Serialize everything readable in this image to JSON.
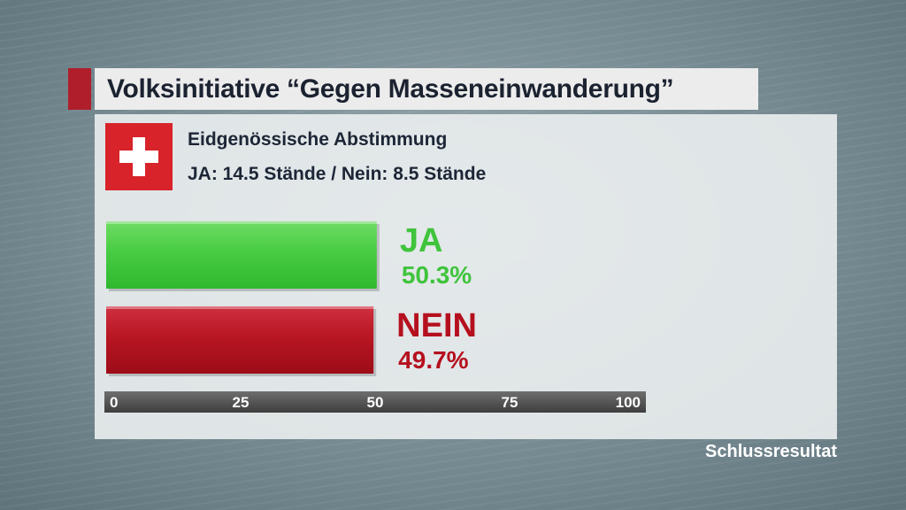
{
  "title": "Volksinitiative “Gegen Masseneinwanderung”",
  "subtitle": "Eidgenössische Abstimmung",
  "standes": "JA: 14.5 Stände / Nein: 8.5 Stände",
  "footer": "Schlussresultat",
  "colors": {
    "ja": "#3fc43c",
    "nein": "#b5101e",
    "accent": "#b01e2b",
    "flag": "#d8232a"
  },
  "chart_data": {
    "type": "bar",
    "orientation": "horizontal",
    "categories": [
      "JA",
      "NEIN"
    ],
    "values": [
      50.3,
      49.7
    ],
    "value_labels": [
      "50.3%",
      "49.7%"
    ],
    "xlim": [
      0,
      100
    ],
    "x_ticks": [
      0,
      25,
      50,
      75,
      100
    ],
    "x_tick_labels": [
      "0",
      "25",
      "50",
      "75",
      "100"
    ]
  }
}
